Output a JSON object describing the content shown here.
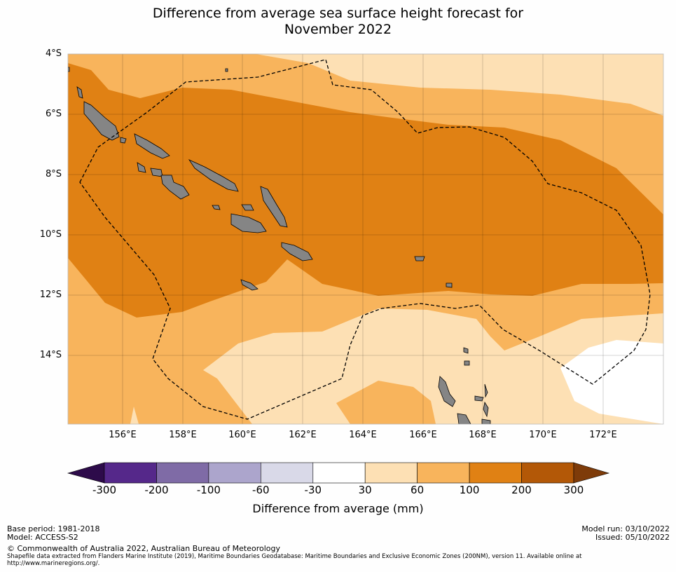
{
  "title_line1": "Difference from average sea surface height forecast for",
  "title_line2": "November 2022",
  "lat_labels": [
    "4°S",
    "6°S",
    "8°S",
    "10°S",
    "12°S",
    "14°S"
  ],
  "lon_labels": [
    "156°E",
    "158°E",
    "160°E",
    "162°E",
    "164°E",
    "166°E",
    "168°E",
    "170°E",
    "172°E"
  ],
  "legend": {
    "ticks": [
      "-300",
      "-200",
      "-100",
      "-60",
      "-30",
      "30",
      "60",
      "100",
      "200",
      "300"
    ],
    "colors": [
      "#2d0b4a",
      "#55288a",
      "#7f6ba6",
      "#aca5cc",
      "#d9d9e8",
      "#ffffff",
      "#fde0b4",
      "#f8b45c",
      "#e08114",
      "#b35807",
      "#7e3b09"
    ],
    "label": "Difference from average (mm)"
  },
  "map_colors": {
    "level_60_100": "#f8b45c",
    "level_100_200": "#e08114",
    "level_30_60": "#fde0b4",
    "level_neutral": "#ffffff",
    "land": "#858585"
  },
  "footer": {
    "base_period": "Base period: 1981-2018",
    "model": "Model: ACCESS-S2",
    "model_run": "Model run: 03/10/2022",
    "issued": "Issued: 05/10/2022",
    "copyright": "© Commonwealth of Australia 2022, Australian Bureau of Meteorology",
    "shapefile_line1": "Shapefile data extracted from Flanders Marine Institute (2019), Maritime Boundaries Geodatabase: Maritime Boundaries and Exclusive Economic Zones (200NM), version 11. Available online at",
    "shapefile_line2": "http://www.marineregions.org/."
  }
}
